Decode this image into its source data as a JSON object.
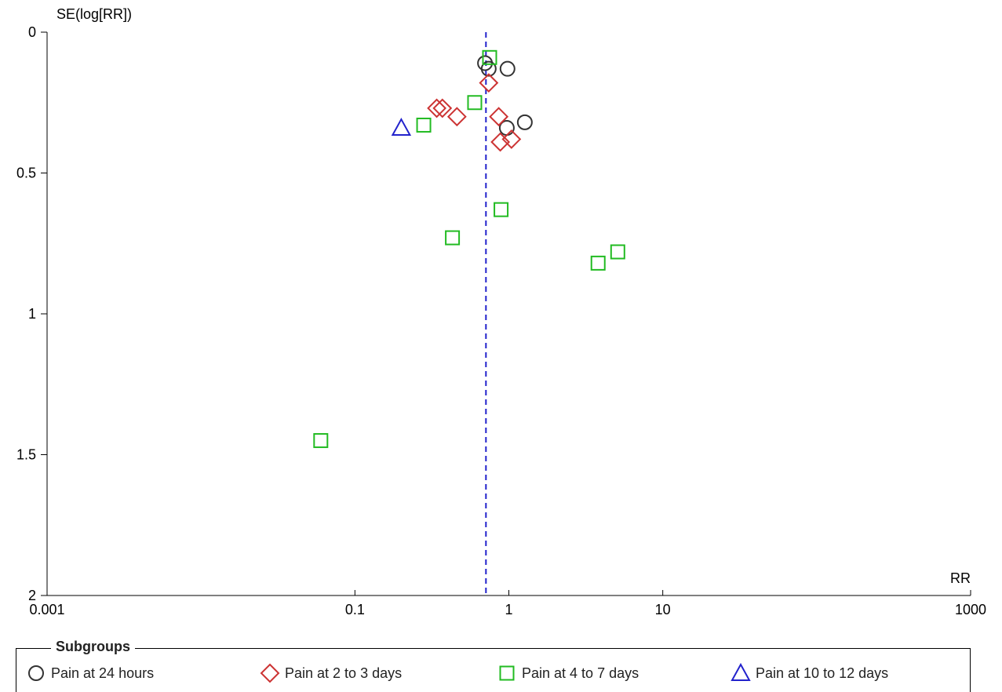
{
  "chart_data": {
    "type": "scatter",
    "title": "",
    "xlabel": "RR",
    "ylabel": "SE(log[RR])",
    "x_scale": "log",
    "xlim": [
      0.001,
      1000
    ],
    "ylim": [
      0,
      2
    ],
    "y_inverted": true,
    "x_ticks": [
      {
        "value": 0.001,
        "label": "0.001"
      },
      {
        "value": 0.1,
        "label": "0.1"
      },
      {
        "value": 1,
        "label": "1"
      },
      {
        "value": 10,
        "label": "10"
      },
      {
        "value": 1000,
        "label": "1000"
      }
    ],
    "y_ticks": [
      {
        "value": 0,
        "label": "0"
      },
      {
        "value": 0.5,
        "label": "0.5"
      },
      {
        "value": 1,
        "label": "1"
      },
      {
        "value": 1.5,
        "label": "1.5"
      },
      {
        "value": 2,
        "label": "2"
      }
    ],
    "reference_line": {
      "x": 0.71,
      "style": "dashed",
      "color": "#2222cc"
    },
    "legend": {
      "title": "Subgroups",
      "placement": "bottom"
    },
    "series": [
      {
        "name": "Pain at 24 hours",
        "marker": "circle",
        "color": "#333333",
        "points": [
          {
            "x": 0.7,
            "y": 0.11
          },
          {
            "x": 0.74,
            "y": 0.13
          },
          {
            "x": 0.98,
            "y": 0.13
          },
          {
            "x": 0.97,
            "y": 0.34
          },
          {
            "x": 1.27,
            "y": 0.32
          }
        ]
      },
      {
        "name": "Pain at 2 to 3 days",
        "marker": "diamond",
        "color": "#cc3333",
        "points": [
          {
            "x": 0.74,
            "y": 0.18
          },
          {
            "x": 0.34,
            "y": 0.27
          },
          {
            "x": 0.37,
            "y": 0.27
          },
          {
            "x": 0.46,
            "y": 0.3
          },
          {
            "x": 0.86,
            "y": 0.3
          },
          {
            "x": 0.88,
            "y": 0.39
          },
          {
            "x": 1.04,
            "y": 0.38
          }
        ]
      },
      {
        "name": "Pain at 4 to 7 days",
        "marker": "square",
        "color": "#22bb22",
        "points": [
          {
            "x": 0.75,
            "y": 0.09
          },
          {
            "x": 0.6,
            "y": 0.25
          },
          {
            "x": 0.28,
            "y": 0.33
          },
          {
            "x": 0.89,
            "y": 0.63
          },
          {
            "x": 0.43,
            "y": 0.73
          },
          {
            "x": 5.1,
            "y": 0.78
          },
          {
            "x": 3.8,
            "y": 0.82
          },
          {
            "x": 0.06,
            "y": 1.45
          }
        ]
      },
      {
        "name": "Pain at 10 to 12 days",
        "marker": "triangle",
        "color": "#2222cc",
        "points": [
          {
            "x": 0.2,
            "y": 0.34
          }
        ]
      }
    ]
  }
}
